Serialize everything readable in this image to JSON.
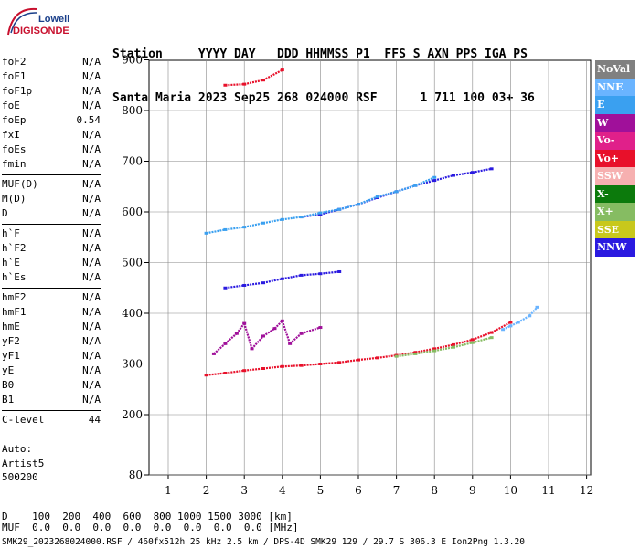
{
  "logo": {
    "line1": "Lowell",
    "line2": "DIGISONDE"
  },
  "header": {
    "labels": "Station     YYYY DAY   DDD HHMMSS P1  FFS S AXN PPS IGA PS",
    "values": "Santa Maria 2023 Sep25 268 024000 RSF      1 711 100 03+ 36"
  },
  "params": [
    {
      "name": "foF2",
      "value": "N/A"
    },
    {
      "name": "foF1",
      "value": "N/A"
    },
    {
      "name": "foF1p",
      "value": "N/A"
    },
    {
      "name": "foE",
      "value": "N/A"
    },
    {
      "name": "foEp",
      "value": "0.54"
    },
    {
      "name": "fxI",
      "value": "N/A"
    },
    {
      "name": "foEs",
      "value": "N/A"
    },
    {
      "name": "fmin",
      "value": "N/A"
    },
    {
      "name": "MUF(D)",
      "value": "N/A"
    },
    {
      "name": "M(D)",
      "value": "N/A"
    },
    {
      "name": "D",
      "value": "N/A"
    },
    {
      "name": "h`F",
      "value": "N/A"
    },
    {
      "name": "h`F2",
      "value": "N/A"
    },
    {
      "name": "h`E",
      "value": "N/A"
    },
    {
      "name": "h`Es",
      "value": "N/A"
    },
    {
      "name": "hmF2",
      "value": "N/A"
    },
    {
      "name": "hmF1",
      "value": "N/A"
    },
    {
      "name": "hmE",
      "value": "N/A"
    },
    {
      "name": "yF2",
      "value": "N/A"
    },
    {
      "name": "yF1",
      "value": "N/A"
    },
    {
      "name": "yE",
      "value": "N/A"
    },
    {
      "name": "B0",
      "value": "N/A"
    },
    {
      "name": "B1",
      "value": "N/A"
    },
    {
      "name": "C-level",
      "value": "44"
    }
  ],
  "auto": {
    "line1": "Auto:",
    "line2": "Artist5",
    "line3": "500200"
  },
  "legend": [
    {
      "label": "NoVal",
      "color": "#808080"
    },
    {
      "label": "NNE",
      "color": "#6ab4ff"
    },
    {
      "label": "E",
      "color": "#3aa0f0"
    },
    {
      "label": "W",
      "color": "#a0109a"
    },
    {
      "label": "Vo-",
      "color": "#e0208a"
    },
    {
      "label": "Vo+",
      "color": "#e8102a"
    },
    {
      "label": "SSW",
      "color": "#f6b0b0"
    },
    {
      "label": "X-",
      "color": "#0c7a0c"
    },
    {
      "label": "X+",
      "color": "#86bc62"
    },
    {
      "label": "SSE",
      "color": "#c8c81c"
    },
    {
      "label": "NNW",
      "color": "#2a1ae0"
    }
  ],
  "distance_table": {
    "row1": "D    100  200  400  600  800 1000 1500 3000 [km]",
    "row2": "MUF  0.0  0.0  0.0  0.0  0.0  0.0  0.0  0.0 [MHz]"
  },
  "footer": "SMK29_2023268024000.RSF / 460fx512h 25 kHz 2.5 km / DPS-4D SMK29 129 / 29.7 S 306.3 E Ion2Png 1.3.20",
  "chart_data": {
    "type": "scatter",
    "x_ticks": [
      "1",
      "2",
      "3",
      "4",
      "5",
      "6",
      "7",
      "8",
      "9",
      "10",
      "11",
      "12"
    ],
    "y_ticks": [
      "80",
      "200",
      "300",
      "400",
      "500",
      "600",
      "700",
      "800",
      "900"
    ],
    "xlim": [
      0.5,
      12
    ],
    "ylim": [
      80,
      900
    ],
    "grid": true,
    "series": [
      {
        "name": "Vo+",
        "color": "#e8102a",
        "x": [
          2.0,
          2.5,
          3.0,
          3.5,
          4.0,
          4.5,
          5.0,
          5.5,
          6.0,
          6.5,
          7.0,
          7.5,
          8.0,
          8.5,
          9.0,
          9.5,
          10.0
        ],
        "y": [
          278,
          282,
          287,
          291,
          295,
          297,
          300,
          303,
          308,
          312,
          317,
          323,
          330,
          338,
          348,
          362,
          382
        ]
      },
      {
        "name": "NNW",
        "color": "#2a1ae0",
        "x": [
          4.5,
          5.0,
          5.5,
          6.0,
          6.5,
          7.0,
          7.5,
          8.0,
          8.5,
          9.0,
          9.5
        ],
        "y": [
          590,
          595,
          605,
          615,
          628,
          640,
          652,
          662,
          672,
          678,
          685
        ]
      },
      {
        "name": "NNW",
        "color": "#2a1ae0",
        "x": [
          2.5,
          3.0,
          3.5,
          4.0,
          4.5,
          5.0,
          5.5
        ],
        "y": [
          450,
          455,
          460,
          468,
          475,
          478,
          482
        ]
      },
      {
        "name": "E",
        "color": "#3aa0f0",
        "x": [
          2.0,
          2.5,
          3.0,
          3.5,
          4.0,
          4.5,
          5.0,
          5.5,
          6.0,
          6.5,
          7.0,
          7.5,
          8.0
        ],
        "y": [
          558,
          565,
          570,
          578,
          585,
          590,
          598,
          605,
          615,
          630,
          640,
          652,
          668
        ]
      },
      {
        "name": "W",
        "color": "#a0109a",
        "x": [
          2.2,
          2.5,
          2.8,
          3.0,
          3.2,
          3.5,
          3.8,
          4.0,
          4.2,
          4.5,
          5.0
        ],
        "y": [
          320,
          340,
          360,
          380,
          330,
          355,
          370,
          385,
          340,
          360,
          372
        ]
      },
      {
        "name": "X+",
        "color": "#86bc62",
        "x": [
          7.0,
          7.5,
          8.0,
          8.5,
          9.0,
          9.5
        ],
        "y": [
          315,
          320,
          326,
          333,
          342,
          352
        ]
      },
      {
        "name": "Vo+",
        "color": "#e8102a",
        "x": [
          2.5,
          3.0,
          3.5,
          4.0
        ],
        "y": [
          850,
          852,
          860,
          880
        ]
      },
      {
        "name": "NNE",
        "color": "#6ab4ff",
        "x": [
          9.8,
          10.0,
          10.2,
          10.5,
          10.7
        ],
        "y": [
          368,
          375,
          382,
          395,
          412
        ]
      }
    ]
  }
}
